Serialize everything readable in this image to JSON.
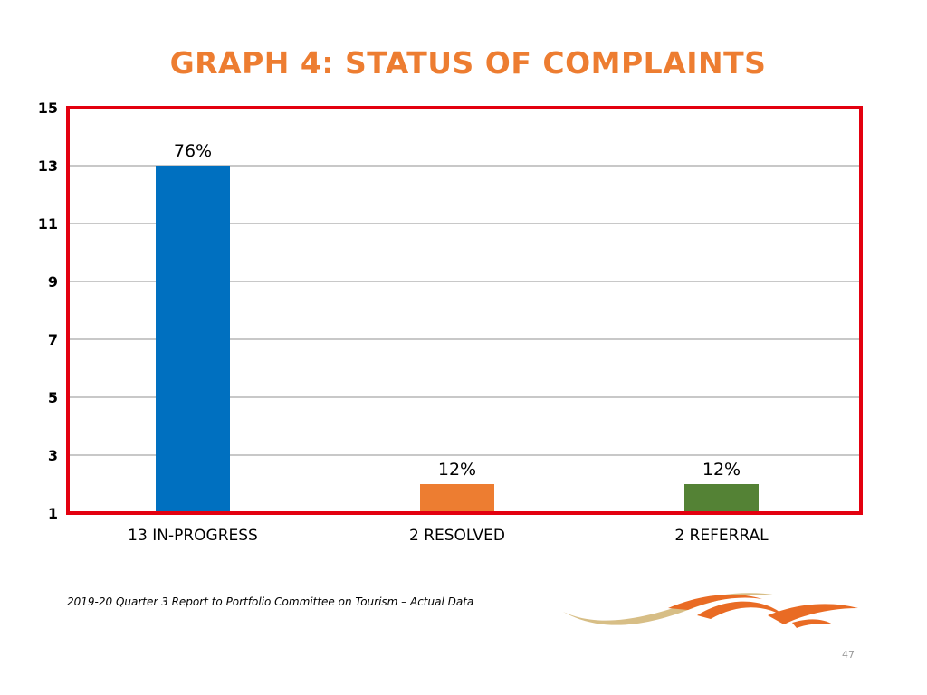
{
  "slide": {
    "title": "GRAPH 4: STATUS OF COMPLAINTS",
    "source_note": "2019-20 Quarter 3 Report to Portfolio Committee on Tourism  – Actual Data",
    "page_number": "47"
  },
  "colors": {
    "title": "#ED7D31",
    "frame": "#E3000F",
    "gridline": "#C8C8C8",
    "logo_orange": "#E96B24",
    "logo_gold": "#D7BE86"
  },
  "logo": {
    "icon": "swoosh-logo-icon"
  },
  "chart_data": {
    "type": "bar",
    "title": "GRAPH 4: STATUS OF COMPLAINTS",
    "xlabel": "",
    "ylabel": "",
    "categories": [
      "13 IN-PROGRESS",
      "2 RESOLVED",
      "2 REFERRAL"
    ],
    "values": [
      13,
      2,
      2
    ],
    "data_labels": [
      "76%",
      "12%",
      "12%"
    ],
    "colors": [
      "#0070C0",
      "#ED7D31",
      "#548235"
    ],
    "ylim": [
      1,
      15
    ],
    "yticks": [
      1,
      3,
      5,
      7,
      9,
      11,
      13,
      15
    ],
    "grid": true,
    "legend": "none"
  }
}
